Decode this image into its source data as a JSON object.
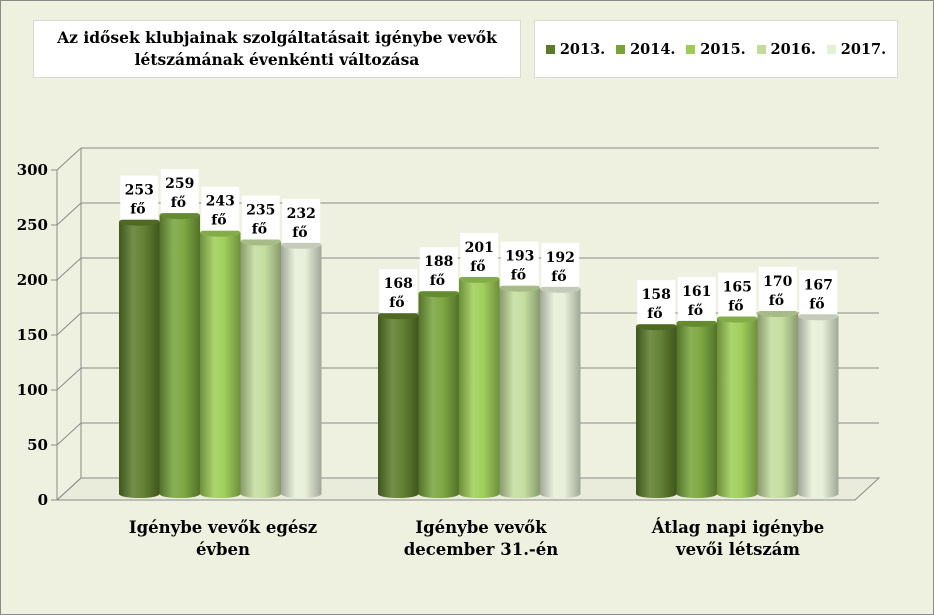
{
  "chart_data": {
    "type": "bar",
    "title": "Az idősek klubjainak szolgáltatásait igénybe vevők létszámának évenkénti változása",
    "title_lines": [
      "Az idősek klubjainak szolgáltatásait igénybe vevők",
      "létszámának évenkénti változása"
    ],
    "categories": [
      "Igénybe vevők egész évben",
      "Igénybe vevők december 31.-én",
      "Átlag napi igénybe vevői létszám"
    ],
    "category_lines": [
      [
        "Igénybe vevők egész",
        "évben"
      ],
      [
        "Igénybe vevők",
        "december 31.-én"
      ],
      [
        "Átlag napi igénybe",
        "vevői létszám"
      ]
    ],
    "series": [
      {
        "name": "2013.",
        "values": [
          253,
          168,
          158
        ],
        "color": "#5c7b2a"
      },
      {
        "name": "2014.",
        "values": [
          259,
          188,
          161
        ],
        "color": "#77a33a"
      },
      {
        "name": "2015.",
        "values": [
          243,
          201,
          165
        ],
        "color": "#9ccc54"
      },
      {
        "name": "2016.",
        "values": [
          235,
          193,
          170
        ],
        "color": "#c3dc9c"
      },
      {
        "name": "2017.",
        "values": [
          232,
          192,
          167
        ],
        "color": "#e6efd8"
      }
    ],
    "value_unit": "fő",
    "ylim": [
      0,
      300
    ],
    "yticks": [
      0,
      50,
      100,
      150,
      200,
      250,
      300
    ],
    "grid": true,
    "legend_position": "top-right",
    "xlabel": "",
    "ylabel": ""
  }
}
